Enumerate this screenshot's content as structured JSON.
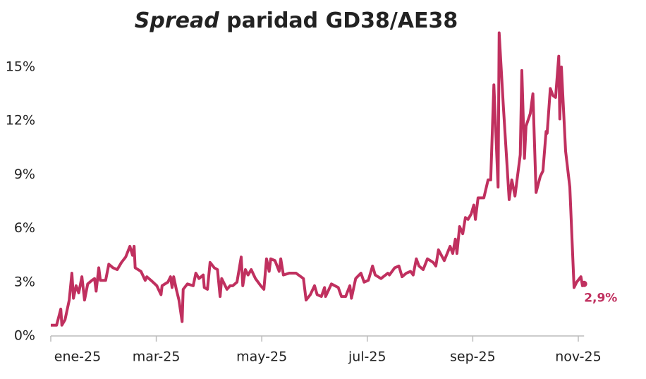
{
  "chart_data": {
    "type": "line",
    "title": {
      "emphasis": "Spread",
      "text": "paridad GD38/AE38"
    },
    "xlim": [
      0,
      10.3
    ],
    "xticks": [
      {
        "value": 0,
        "label": "ene-25"
      },
      {
        "value": 2,
        "label": "mar-25"
      },
      {
        "value": 4,
        "label": "may-25"
      },
      {
        "value": 6,
        "label": "jul-25"
      },
      {
        "value": 8,
        "label": "sep-25"
      },
      {
        "value": 10,
        "label": "nov-25"
      }
    ],
    "ylim": [
      0,
      17
    ],
    "yticks": [
      {
        "value": 0,
        "label": "0%"
      },
      {
        "value": 3,
        "label": "3%"
      },
      {
        "value": 6,
        "label": "6%"
      },
      {
        "value": 9,
        "label": "9%"
      },
      {
        "value": 12,
        "label": "12%"
      },
      {
        "value": 15,
        "label": "15%"
      }
    ],
    "grid": false,
    "color": "#c0305f",
    "x": [
      0,
      0.11,
      0.19,
      0.21,
      0.27,
      0.35,
      0.4,
      0.43,
      0.48,
      0.53,
      0.59,
      0.64,
      0.7,
      0.78,
      0.83,
      0.86,
      0.91,
      0.94,
      1.04,
      1.1,
      1.18,
      1.26,
      1.34,
      1.42,
      1.5,
      1.55,
      1.58,
      1.6,
      1.71,
      1.79,
      1.82,
      1.9,
      2.01,
      2.09,
      2.11,
      2.22,
      2.27,
      2.3,
      2.33,
      2.38,
      2.43,
      2.49,
      2.51,
      2.59,
      2.7,
      2.75,
      2.81,
      2.89,
      2.91,
      2.97,
      3.02,
      3.1,
      3.16,
      3.21,
      3.24,
      3.29,
      3.34,
      3.4,
      3.45,
      3.53,
      3.61,
      3.64,
      3.69,
      3.74,
      3.8,
      3.88,
      3.98,
      4.04,
      4.09,
      4.14,
      4.17,
      4.25,
      4.33,
      4.36,
      4.41,
      4.52,
      4.65,
      4.79,
      4.84,
      4.92,
      5.0,
      5.05,
      5.13,
      5.19,
      5.21,
      5.32,
      5.45,
      5.51,
      5.59,
      5.67,
      5.7,
      5.78,
      5.88,
      5.94,
      6.02,
      6.1,
      6.15,
      6.26,
      6.39,
      6.42,
      6.52,
      6.6,
      6.66,
      6.74,
      6.82,
      6.87,
      6.93,
      6.98,
      7.06,
      7.14,
      7.25,
      7.3,
      7.35,
      7.46,
      7.57,
      7.62,
      7.67,
      7.7,
      7.75,
      7.81,
      7.86,
      7.91,
      7.97,
      8.02,
      8.05,
      8.1,
      8.21,
      8.29,
      8.34,
      8.4,
      8.48,
      8.5,
      8.58,
      8.69,
      8.74,
      8.8,
      8.9,
      8.93,
      8.98,
      9.01,
      9.09,
      9.14,
      9.2,
      9.28,
      9.33,
      9.39,
      9.41,
      9.47,
      9.52,
      9.57,
      9.63,
      9.65,
      9.68,
      9.76,
      9.84,
      9.92,
      9.97,
      10.05,
      10.08,
      10.11
    ],
    "values": [
      0.6,
      0.6,
      1.5,
      0.6,
      0.9,
      2.0,
      3.5,
      2.1,
      2.8,
      2.4,
      3.3,
      2.0,
      2.9,
      3.1,
      3.2,
      2.5,
      3.8,
      3.1,
      3.1,
      4.0,
      3.8,
      3.7,
      4.1,
      4.4,
      5.0,
      4.5,
      5.0,
      3.8,
      3.6,
      3.1,
      3.3,
      3.1,
      2.8,
      2.3,
      2.8,
      3.0,
      3.3,
      2.7,
      3.3,
      2.6,
      2.0,
      0.8,
      2.6,
      2.9,
      2.8,
      3.5,
      3.2,
      3.4,
      2.7,
      2.6,
      4.1,
      3.8,
      3.7,
      2.2,
      3.2,
      2.9,
      2.6,
      2.8,
      2.8,
      3.0,
      4.4,
      2.8,
      3.7,
      3.4,
      3.7,
      3.2,
      2.8,
      2.6,
      4.3,
      3.6,
      4.3,
      4.2,
      3.6,
      4.3,
      3.4,
      3.5,
      3.5,
      3.2,
      2.0,
      2.3,
      2.8,
      2.3,
      2.2,
      2.7,
      2.2,
      2.9,
      2.7,
      2.2,
      2.2,
      2.8,
      2.1,
      3.2,
      3.5,
      3.0,
      3.1,
      3.9,
      3.4,
      3.2,
      3.5,
      3.4,
      3.8,
      3.9,
      3.3,
      3.5,
      3.6,
      3.4,
      4.3,
      3.9,
      3.7,
      4.3,
      4.1,
      3.9,
      4.8,
      4.2,
      5.0,
      4.6,
      5.4,
      4.6,
      6.1,
      5.7,
      6.6,
      6.5,
      6.8,
      7.3,
      6.5,
      7.7,
      7.7,
      8.7,
      8.7,
      14.0,
      8.3,
      16.9,
      12.8,
      7.6,
      8.7,
      7.8,
      10.1,
      14.8,
      9.9,
      11.7,
      12.4,
      13.5,
      8.0,
      8.9,
      9.2,
      11.4,
      11.3,
      13.8,
      13.4,
      13.3,
      15.6,
      12.1,
      15.0,
      10.3,
      8.3,
      2.7,
      3.0,
      3.3,
      2.8,
      2.9
    ],
    "end_label": "2,9%"
  }
}
